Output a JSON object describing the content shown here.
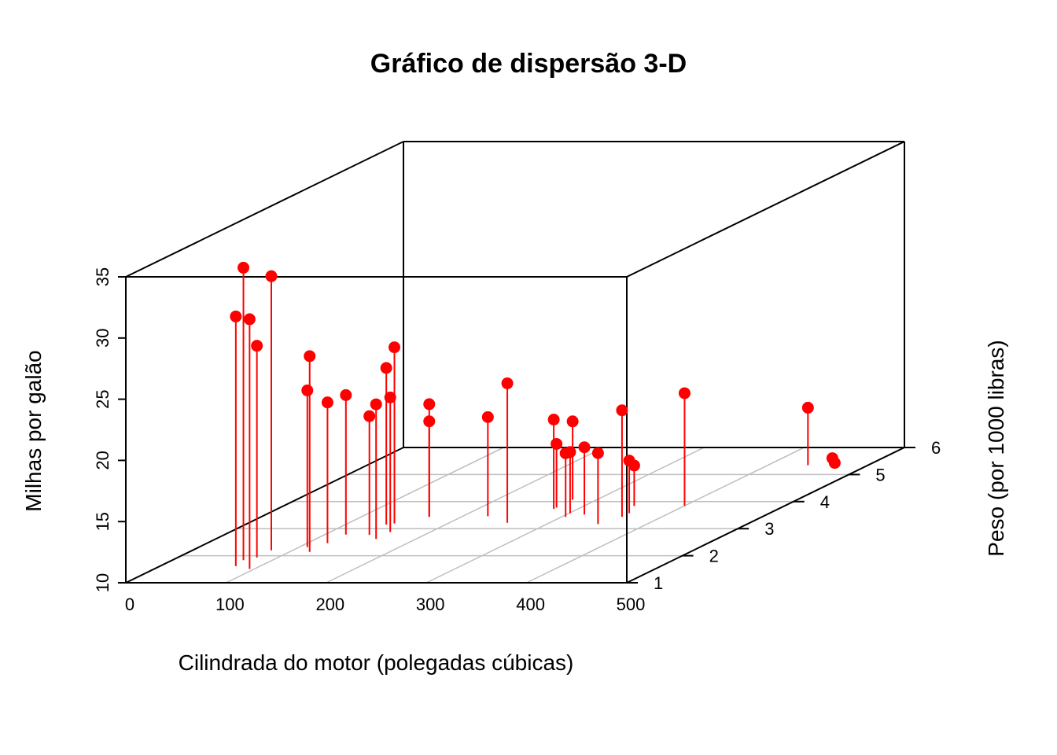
{
  "chart_data": {
    "type": "scatter3d",
    "title": "Gráfico de dispersão 3-D",
    "xlabel": "Cilindrada do motor (polegadas cúbicas)",
    "ylabel": "Peso (por 1000 libras)",
    "zlabel": "Milhas por galão",
    "xlim": [
      0,
      500
    ],
    "ylim": [
      1,
      6
    ],
    "zlim": [
      10,
      35
    ],
    "x_ticks": [
      "0",
      "100",
      "200",
      "300",
      "400",
      "500"
    ],
    "y_ticks": [
      "1",
      "2",
      "3",
      "4",
      "5",
      "6"
    ],
    "z_ticks": [
      "10",
      "15",
      "20",
      "25",
      "30",
      "35"
    ],
    "grid": true,
    "colors": {
      "points": "#ff0000",
      "box": "#000000",
      "grid": "#bebebe"
    },
    "points": [
      {
        "x": 160.0,
        "y": 2.62,
        "z": 21.0
      },
      {
        "x": 160.0,
        "y": 2.875,
        "z": 21.0
      },
      {
        "x": 108.0,
        "y": 2.32,
        "z": 22.8
      },
      {
        "x": 258.0,
        "y": 3.215,
        "z": 21.4
      },
      {
        "x": 360.0,
        "y": 3.44,
        "z": 18.7
      },
      {
        "x": 225.0,
        "y": 3.46,
        "z": 18.1
      },
      {
        "x": 360.0,
        "y": 3.57,
        "z": 14.3
      },
      {
        "x": 146.7,
        "y": 3.19,
        "z": 24.4
      },
      {
        "x": 140.8,
        "y": 3.15,
        "z": 22.8
      },
      {
        "x": 167.6,
        "y": 3.44,
        "z": 19.2
      },
      {
        "x": 167.6,
        "y": 3.44,
        "z": 17.8
      },
      {
        "x": 275.8,
        "y": 4.07,
        "z": 16.4
      },
      {
        "x": 275.8,
        "y": 3.73,
        "z": 17.3
      },
      {
        "x": 275.8,
        "y": 3.78,
        "z": 15.2
      },
      {
        "x": 472.0,
        "y": 5.25,
        "z": 10.4
      },
      {
        "x": 460.0,
        "y": 5.424,
        "z": 10.4
      },
      {
        "x": 440.0,
        "y": 5.345,
        "z": 14.7
      },
      {
        "x": 78.7,
        "y": 2.2,
        "z": 32.4
      },
      {
        "x": 75.7,
        "y": 1.615,
        "z": 30.4
      },
      {
        "x": 71.1,
        "y": 1.835,
        "z": 33.9
      },
      {
        "x": 120.1,
        "y": 2.465,
        "z": 21.5
      },
      {
        "x": 318.0,
        "y": 3.52,
        "z": 15.5
      },
      {
        "x": 304.0,
        "y": 3.435,
        "z": 15.2
      },
      {
        "x": 350.0,
        "y": 3.84,
        "z": 13.3
      },
      {
        "x": 400.0,
        "y": 3.845,
        "z": 19.2
      },
      {
        "x": 79.0,
        "y": 1.935,
        "z": 27.3
      },
      {
        "x": 120.3,
        "y": 2.14,
        "z": 26.0
      },
      {
        "x": 95.1,
        "y": 1.513,
        "z": 30.4
      },
      {
        "x": 351.0,
        "y": 3.17,
        "z": 15.8
      },
      {
        "x": 145.0,
        "y": 2.77,
        "z": 19.7
      },
      {
        "x": 301.0,
        "y": 3.57,
        "z": 15.0
      },
      {
        "x": 121.0,
        "y": 2.78,
        "z": 21.4
      }
    ]
  }
}
